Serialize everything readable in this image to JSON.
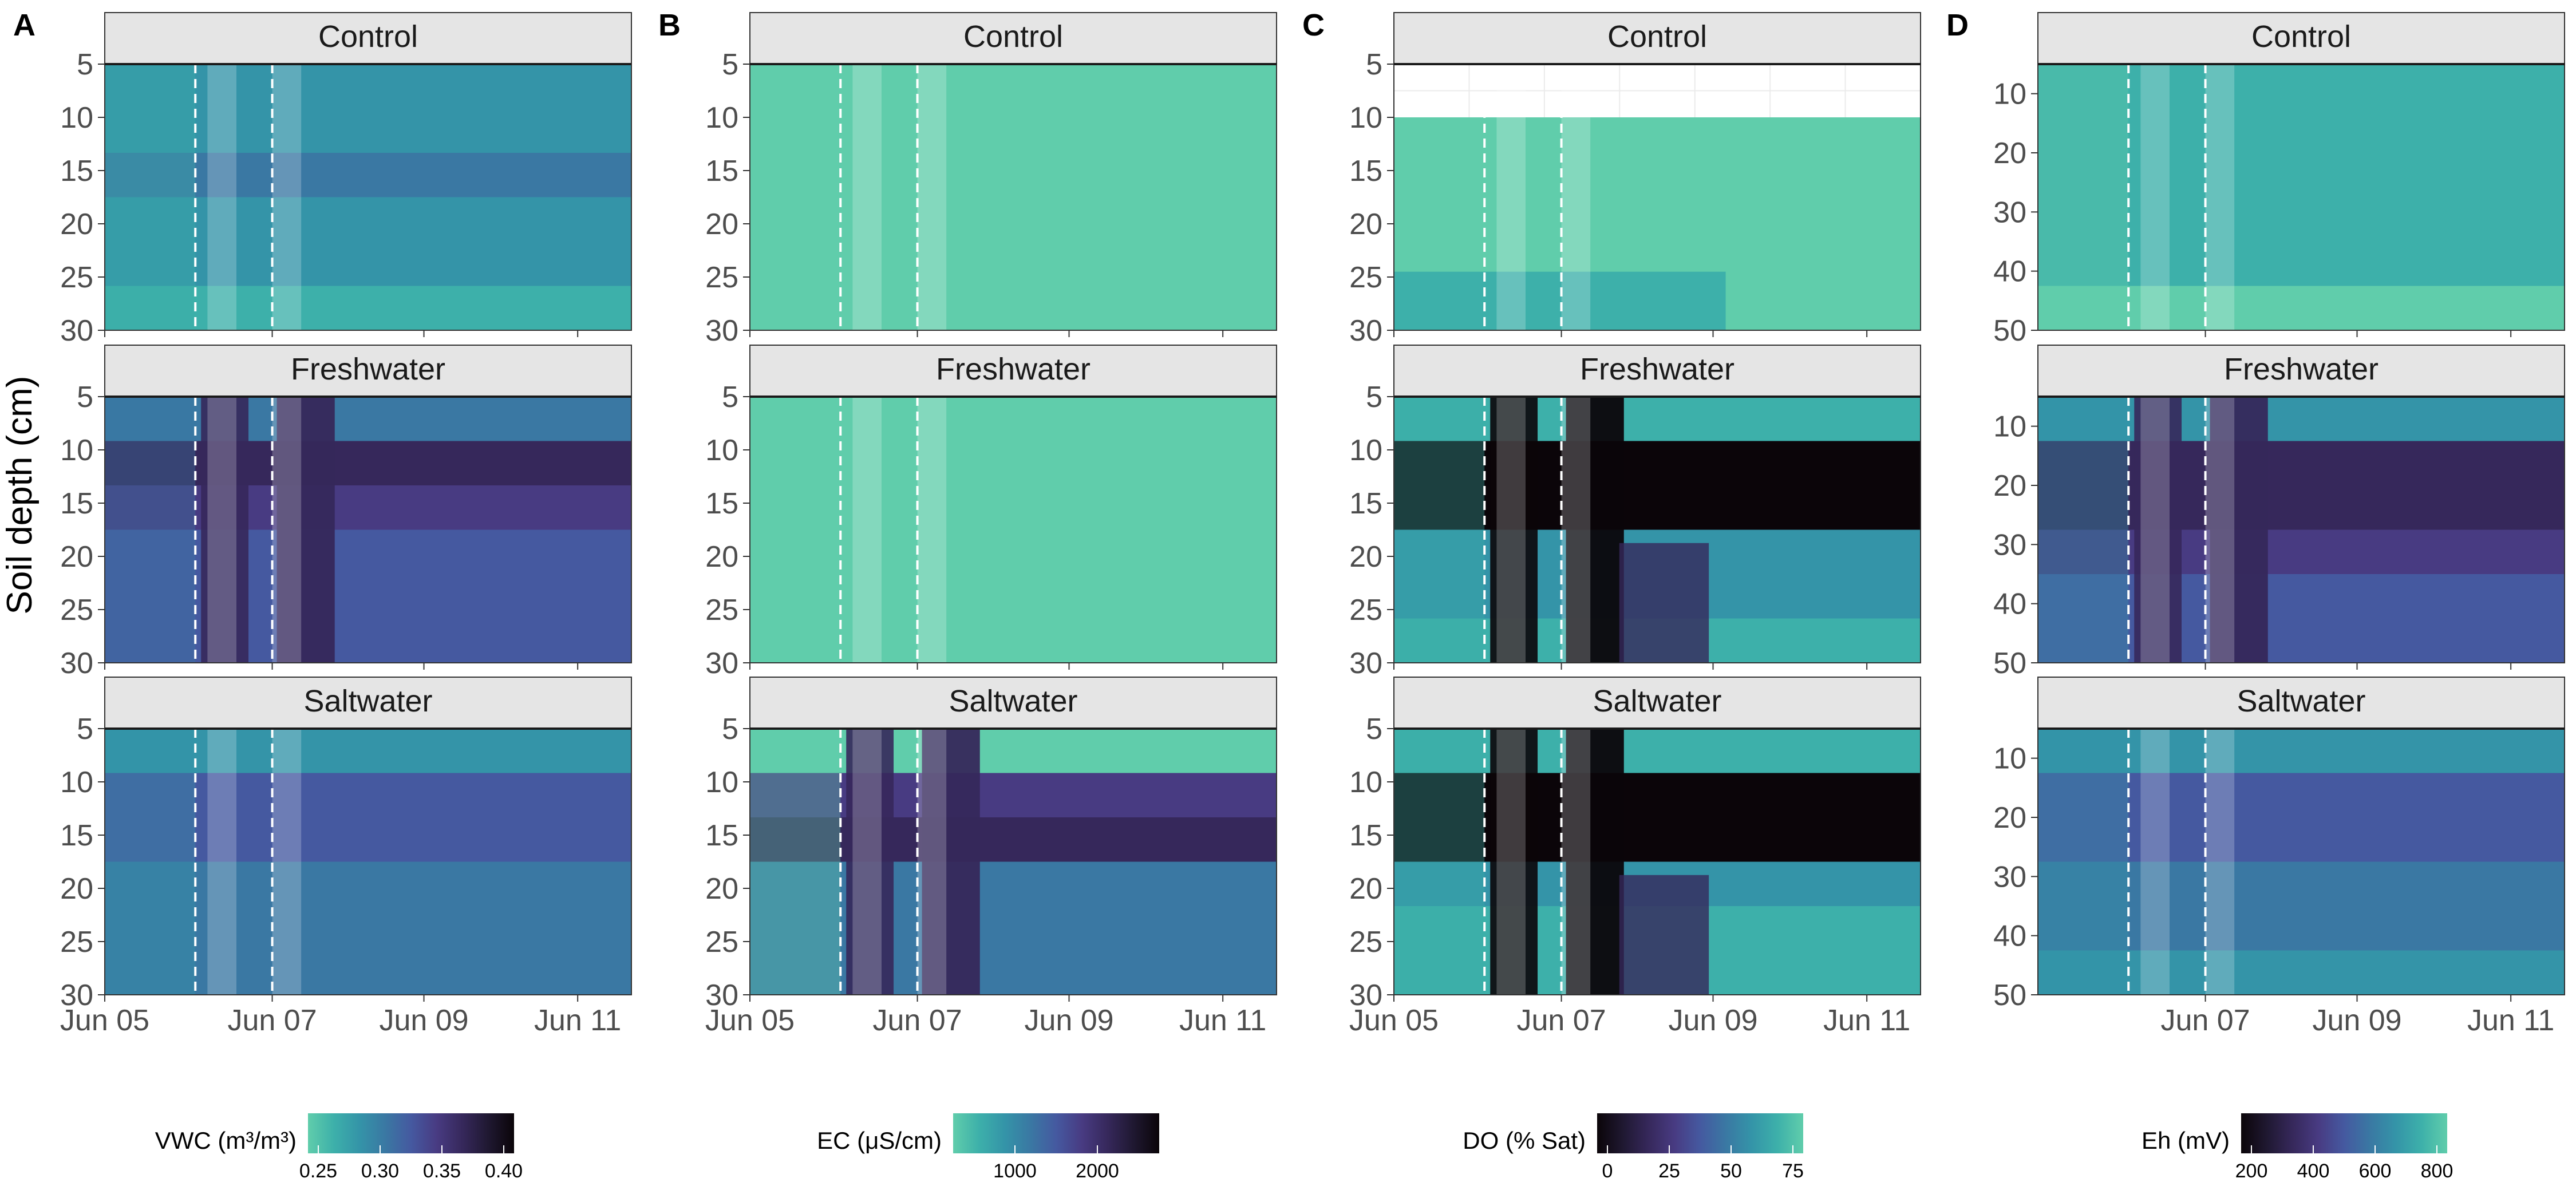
{
  "figure": {
    "ylabel": "Soil depth (cm)"
  },
  "colors": {
    "strip_fill": "#e5e5e5",
    "strip_border": "#333333",
    "panel_border": "#333333",
    "flood_band": "#ffffff",
    "dashed_line": "#ffffff",
    "background": "#ffffff",
    "palette": [
      "#60cdab",
      "#3db0aa",
      "#3494a8",
      "#3a78a3",
      "#4559a0",
      "#483b82",
      "#36285b",
      "#1f1831",
      "#0b0509"
    ]
  },
  "chart_data": [
    {
      "type": "heatmap",
      "panel_letter": "A",
      "variable": "VWC",
      "x_ticks": [
        "Jun 05",
        "Jun 07",
        "Jun 09",
        "Jun 11"
      ],
      "y_ticks": [
        5,
        10,
        15,
        20,
        25,
        30
      ],
      "ylim": [
        5,
        30
      ],
      "facets": [
        "Control",
        "Freshwater",
        "Saltwater"
      ],
      "flood_events": [
        "Jun 06",
        "Jun 07"
      ],
      "legend": {
        "title": "VWC (m³/m³)",
        "ticks": [
          "0.25",
          "0.30",
          "0.35",
          "0.40"
        ],
        "direction": "low-to-high dark"
      },
      "mean_level": {
        "Control": [
          2,
          2,
          3,
          2,
          2,
          1
        ],
        "Freshwater": [
          3,
          6,
          5,
          4,
          4,
          4
        ],
        "Saltwater": [
          2,
          4,
          4,
          3,
          3,
          3
        ]
      }
    },
    {
      "type": "heatmap",
      "panel_letter": "B",
      "variable": "EC",
      "x_ticks": [
        "Jun 05",
        "Jun 07",
        "Jun 09",
        "Jun 11"
      ],
      "y_ticks": [
        5,
        10,
        15,
        20,
        25,
        30
      ],
      "ylim": [
        5,
        30
      ],
      "facets": [
        "Control",
        "Freshwater",
        "Saltwater"
      ],
      "flood_events": [
        "Jun 06",
        "Jun 07"
      ],
      "legend": {
        "title": "EC (μS/cm)",
        "ticks": [
          "1000",
          "2000"
        ],
        "direction": "low-to-high dark"
      },
      "mean_level": {
        "Control": [
          0,
          0,
          0,
          0,
          0,
          0
        ],
        "Freshwater": [
          0,
          0,
          0,
          0,
          0,
          0
        ],
        "Saltwater": [
          0,
          5,
          6,
          3,
          3,
          3
        ]
      }
    },
    {
      "type": "heatmap",
      "panel_letter": "C",
      "variable": "DO",
      "x_ticks": [
        "Jun 05",
        "Jun 07",
        "Jun 09",
        "Jun 11"
      ],
      "y_ticks": [
        5,
        10,
        15,
        20,
        25,
        30
      ],
      "ylim": [
        5,
        30
      ],
      "facets": [
        "Control",
        "Freshwater",
        "Saltwater"
      ],
      "flood_events": [
        "Jun 06",
        "Jun 07"
      ],
      "legend": {
        "title": "DO (% Sat)",
        "ticks": [
          "0",
          "25",
          "50",
          "75"
        ],
        "direction": "low-dark-to-high-light"
      },
      "mean_level": {
        "Control": [
          0,
          0,
          0,
          0,
          0,
          0
        ],
        "Freshwater": [
          1,
          8,
          8,
          2,
          2,
          1
        ],
        "Saltwater": [
          1,
          8,
          8,
          2,
          1,
          1
        ]
      }
    },
    {
      "type": "heatmap",
      "panel_letter": "D",
      "variable": "Eh",
      "x_ticks": [
        "Jun 07",
        "Jun 09",
        "Jun 11"
      ],
      "y_ticks": [
        10,
        20,
        30,
        40,
        50
      ],
      "ylim": [
        5,
        50
      ],
      "facets": [
        "Control",
        "Freshwater",
        "Saltwater"
      ],
      "flood_events": [
        "Jun 06",
        "Jun 07"
      ],
      "legend": {
        "title": "Eh (mV)",
        "ticks": [
          "200",
          "400",
          "600",
          "800"
        ],
        "direction": "low-dark-to-high-light"
      },
      "mean_level": {
        "Control": [
          1,
          1,
          1,
          1,
          1,
          0
        ],
        "Freshwater": [
          2,
          6,
          6,
          5,
          4,
          4
        ],
        "Saltwater": [
          2,
          4,
          4,
          3,
          3,
          2
        ]
      }
    }
  ]
}
